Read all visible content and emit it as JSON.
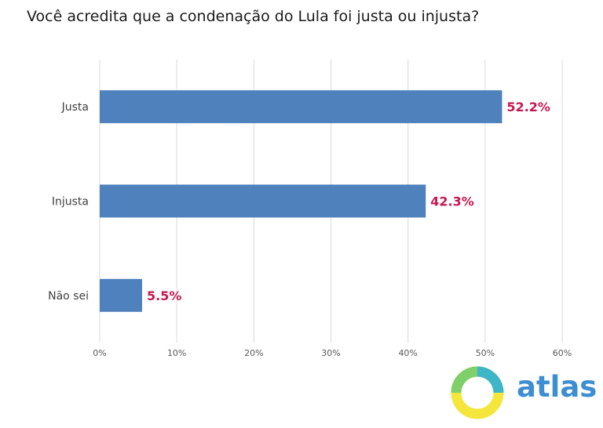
{
  "title": "Você acredita que a condenação do Lula foi justa ou injusta?",
  "chart_data": {
    "type": "bar",
    "orientation": "horizontal",
    "title": "Você acredita que a condenação do Lula foi justa ou injusta?",
    "categories": [
      "Justa",
      "Injusta",
      "Não sei"
    ],
    "values": [
      52.2,
      42.3,
      5.5
    ],
    "value_labels": [
      "52.2%",
      "42.3%",
      "5.5%"
    ],
    "xlim": [
      0,
      60
    ],
    "xticks": [
      0,
      10,
      20,
      30,
      40,
      50,
      60
    ],
    "xtick_labels": [
      "0%",
      "10%",
      "20%",
      "30%",
      "40%",
      "50%",
      "60%"
    ],
    "xlabel": "",
    "ylabel": "",
    "grid": true,
    "bar_color": "#4f81bd",
    "label_color": "#c8174f",
    "grid_color": "#d9d9d9"
  },
  "brand": {
    "name": "atlas",
    "text_color": "#3d8fd1",
    "logo_colors": [
      "#f5e63c",
      "#3fb5c8",
      "#7fcf6a"
    ]
  }
}
